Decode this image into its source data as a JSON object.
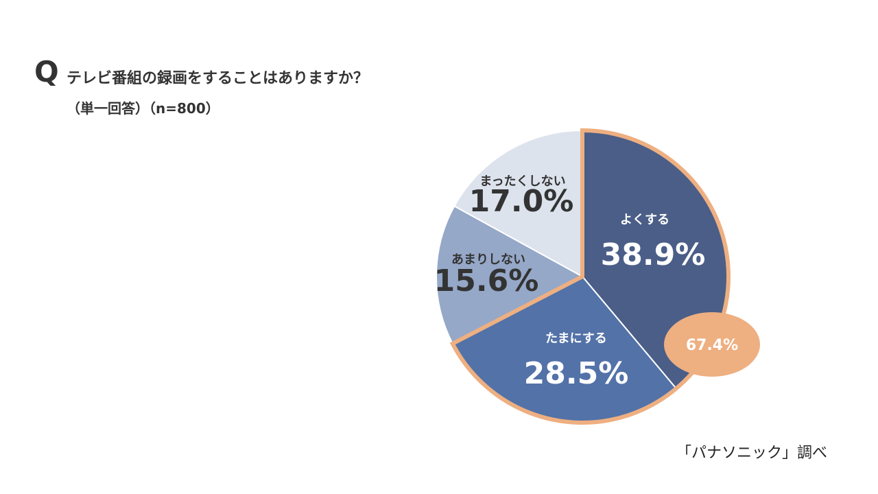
{
  "header": {
    "q_mark": "Q",
    "question": "テレビ番組の録画をすることはありますか？",
    "subtitle": "（単一回答）（n=800）"
  },
  "source": "「パナソニック」調べ",
  "chart_data": {
    "type": "pie",
    "title": "テレビ番組の録画をすることはありますか？",
    "categories": [
      "よくする",
      "たまにする",
      "あまりしない",
      "まったくしない"
    ],
    "values": [
      38.9,
      28.5,
      15.6,
      17.0
    ],
    "value_labels": [
      "38.9%",
      "28.5%",
      "15.6%",
      "17.0%"
    ],
    "colors": [
      "#4a5e87",
      "#5272a8",
      "#95a8c8",
      "#dce3ed"
    ],
    "label_colors": [
      "#ffffff",
      "#ffffff",
      "#333333",
      "#333333"
    ],
    "highlight": {
      "label": "67.4%",
      "categories": [
        "よくする",
        "たまにする"
      ],
      "color": "#eeaf81"
    }
  }
}
